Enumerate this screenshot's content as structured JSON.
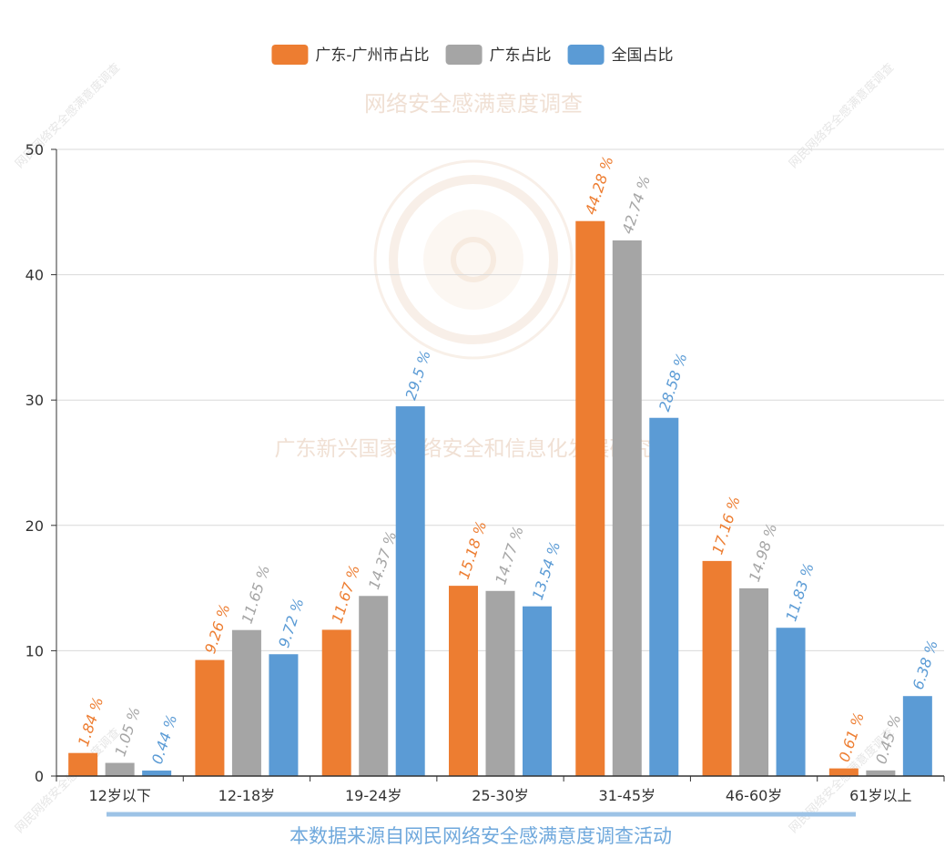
{
  "chart_data": {
    "type": "bar",
    "categories": [
      "12岁以下",
      "12-18岁",
      "19-24岁",
      "25-30岁",
      "31-45岁",
      "46-60岁",
      "61岁以上"
    ],
    "series": [
      {
        "name": "广东-广州市占比",
        "color": "#ed7d31",
        "values": [
          1.84,
          9.26,
          11.67,
          15.18,
          44.28,
          17.16,
          0.61
        ]
      },
      {
        "name": "广东占比",
        "color": "#a5a5a5",
        "values": [
          1.05,
          11.65,
          14.37,
          14.77,
          42.74,
          14.98,
          0.45
        ]
      },
      {
        "name": "全国占比",
        "color": "#5b9bd5",
        "values": [
          0.44,
          9.72,
          29.5,
          13.54,
          28.58,
          11.83,
          6.38
        ]
      }
    ],
    "ylim": [
      0,
      50
    ],
    "yticks": [
      0,
      10,
      20,
      30,
      40,
      50
    ],
    "label_suffix": " %",
    "grid": true,
    "legend_position": "top-center"
  },
  "watermarks": {
    "title": "网络安全感满意度调查",
    "middle": "广东新兴国家网络安全和信息化发展研究院",
    "corner": "网民网络安全感满意度调查"
  },
  "footer": {
    "text": "本数据来源自网民网络安全感满意度调查活动",
    "line_color": "#9dc3e6"
  }
}
